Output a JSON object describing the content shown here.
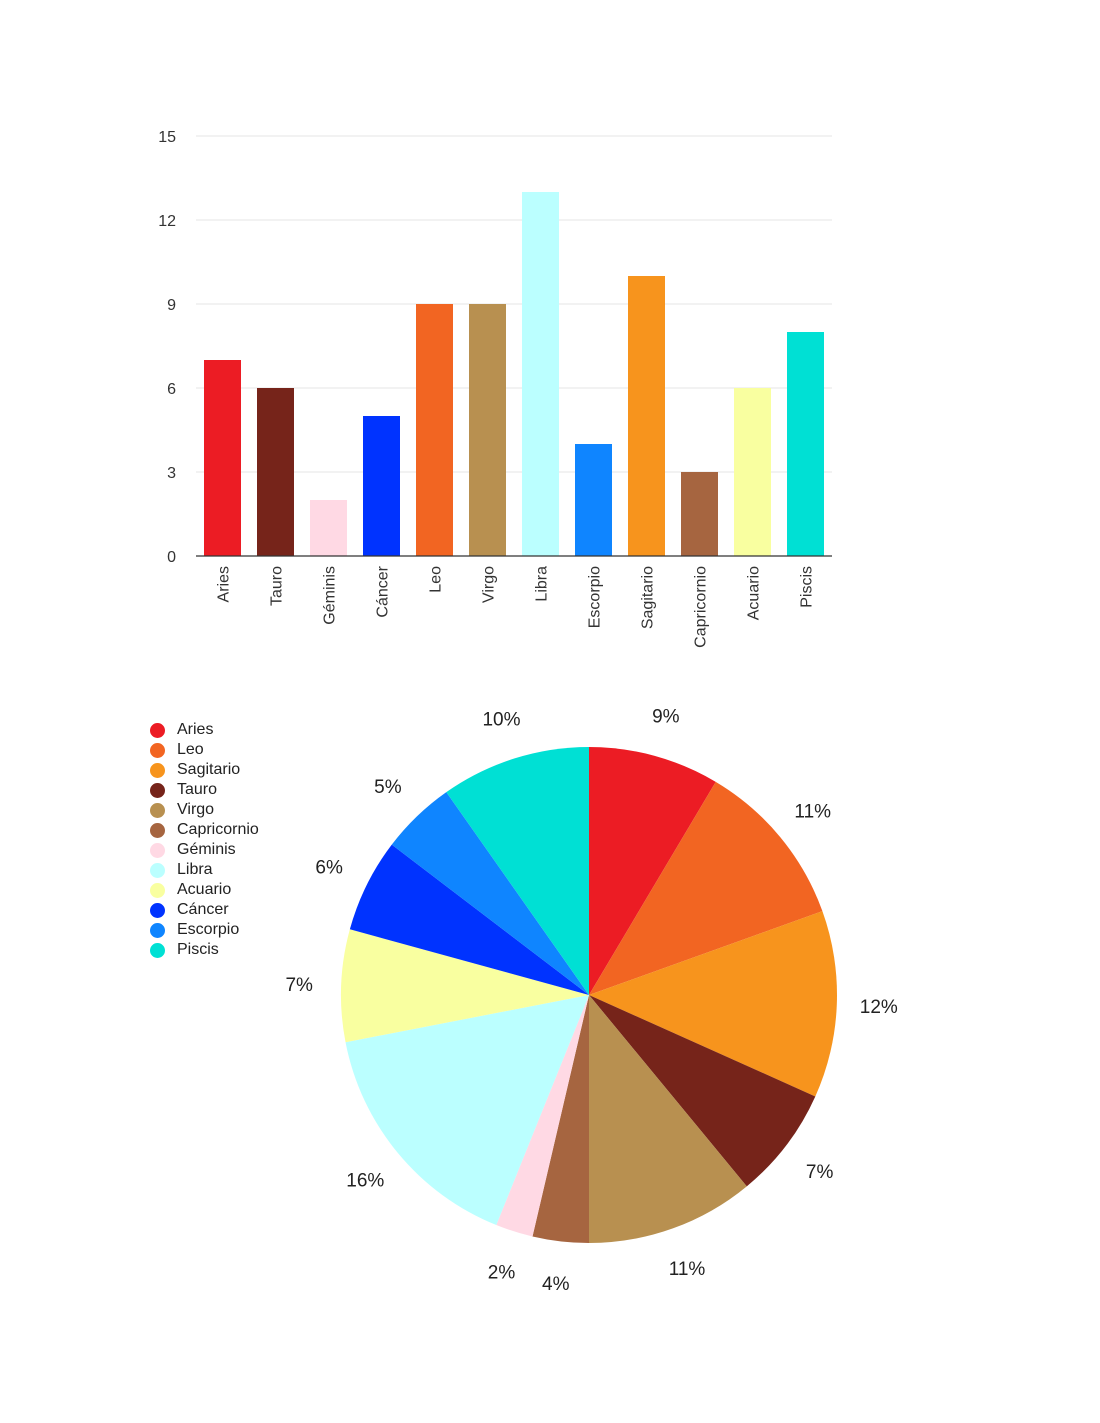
{
  "chart_data": [
    {
      "type": "bar",
      "categories": [
        "Aries",
        "Tauro",
        "Géminis",
        "Cáncer",
        "Leo",
        "Virgo",
        "Libra",
        "Escorpio",
        "Sagitario",
        "Capricornio",
        "Acuario",
        "Piscis"
      ],
      "values": [
        7,
        6,
        2,
        5,
        9,
        9,
        13,
        4,
        10,
        3,
        6,
        8
      ],
      "colors": [
        "#ec1c24",
        "#76241a",
        "#ffd9e4",
        "#0033ff",
        "#f26522",
        "#b89050",
        "#bbffff",
        "#0f85ff",
        "#f7941d",
        "#a66540",
        "#f9ffa0",
        "#00e0d4"
      ],
      "yticks": [
        0,
        3,
        6,
        9,
        12,
        15
      ],
      "ylim": [
        0,
        15
      ],
      "grid": true
    },
    {
      "type": "pie",
      "labels": [
        "Aries",
        "Leo",
        "Sagitario",
        "Tauro",
        "Virgo",
        "Capricornio",
        "Géminis",
        "Libra",
        "Acuario",
        "Cáncer",
        "Escorpio",
        "Piscis"
      ],
      "values": [
        7,
        9,
        10,
        6,
        9,
        3,
        2,
        13,
        6,
        5,
        4,
        8
      ],
      "percent_labels": [
        "9%",
        "11%",
        "12%",
        "7%",
        "11%",
        "4%",
        "2%",
        "16%",
        "7%",
        "6%",
        "5%",
        "10%"
      ],
      "colors": [
        "#ec1c24",
        "#f26522",
        "#f7941d",
        "#76241a",
        "#b89050",
        "#a66540",
        "#ffd9e4",
        "#bbffff",
        "#f9ffa0",
        "#0033ff",
        "#0f85ff",
        "#00e0d4"
      ],
      "legend_position": "top-left"
    }
  ]
}
